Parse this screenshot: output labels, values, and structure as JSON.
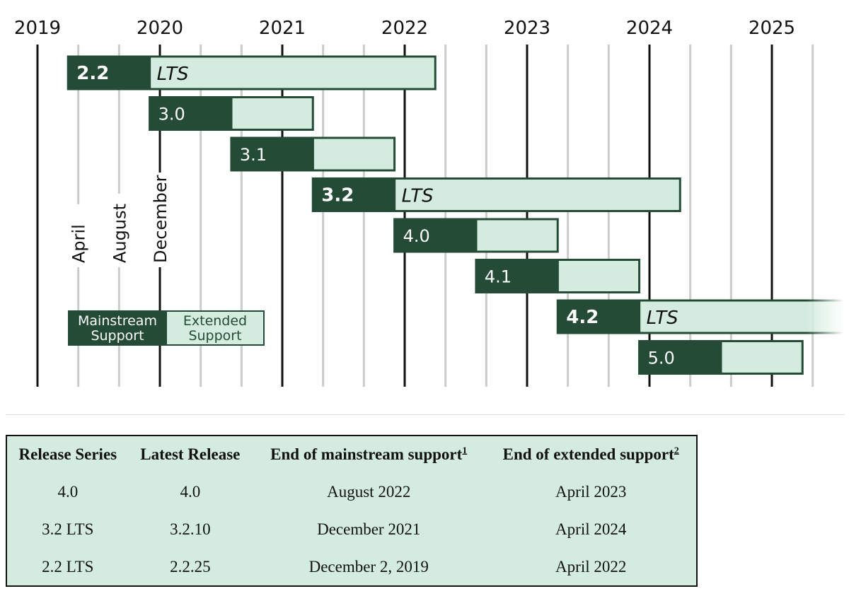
{
  "chart_data": {
    "type": "gantt",
    "x_axis": {
      "years": [
        "2019",
        "2020",
        "2021",
        "2022",
        "2023",
        "2024",
        "2025"
      ]
    },
    "month_markers": [
      "April",
      "August",
      "December"
    ],
    "series": [
      {
        "version": "2.2",
        "lts": true,
        "lts_label": "LTS",
        "mainstream_start": "2019-04",
        "mainstream_end": "2019-12",
        "extended_end": "2022-04"
      },
      {
        "version": "3.0",
        "lts": false,
        "mainstream_start": "2019-12",
        "mainstream_end": "2020-08",
        "extended_end": "2021-04"
      },
      {
        "version": "3.1",
        "lts": false,
        "mainstream_start": "2020-08",
        "mainstream_end": "2021-04",
        "extended_end": "2021-12"
      },
      {
        "version": "3.2",
        "lts": true,
        "lts_label": "LTS",
        "mainstream_start": "2021-04",
        "mainstream_end": "2021-12",
        "extended_end": "2024-04"
      },
      {
        "version": "4.0",
        "lts": false,
        "mainstream_start": "2021-12",
        "mainstream_end": "2022-08",
        "extended_end": "2023-04"
      },
      {
        "version": "4.1",
        "lts": false,
        "mainstream_start": "2022-08",
        "mainstream_end": "2023-04",
        "extended_end": "2023-12"
      },
      {
        "version": "4.2",
        "lts": true,
        "lts_label": "LTS",
        "mainstream_start": "2023-04",
        "mainstream_end": "2023-12",
        "extended_end": "2025-08",
        "fades_out": true
      },
      {
        "version": "5.0",
        "lts": false,
        "mainstream_start": "2023-12",
        "mainstream_end": "2024-08",
        "extended_end": "2025-04"
      }
    ],
    "legend": {
      "mainstream": [
        "Mainstream",
        "Support"
      ],
      "extended": [
        "Extended",
        "Support"
      ]
    },
    "colors": {
      "mainstream": "#234b35",
      "extended": "#d4ecdf",
      "grid_year": "#111111",
      "grid_month": "#cccccc"
    }
  },
  "table": {
    "headers": [
      "Release Series",
      "Latest Release",
      "End of mainstream support",
      "End of extended support"
    ],
    "footnotes": [
      "1",
      "2"
    ],
    "rows": [
      [
        "4.0",
        "4.0",
        "August 2022",
        "April 2023"
      ],
      [
        "3.2 LTS",
        "3.2.10",
        "December 2021",
        "April 2024"
      ],
      [
        "2.2 LTS",
        "2.2.25",
        "December 2, 2019",
        "April 2022"
      ]
    ]
  }
}
